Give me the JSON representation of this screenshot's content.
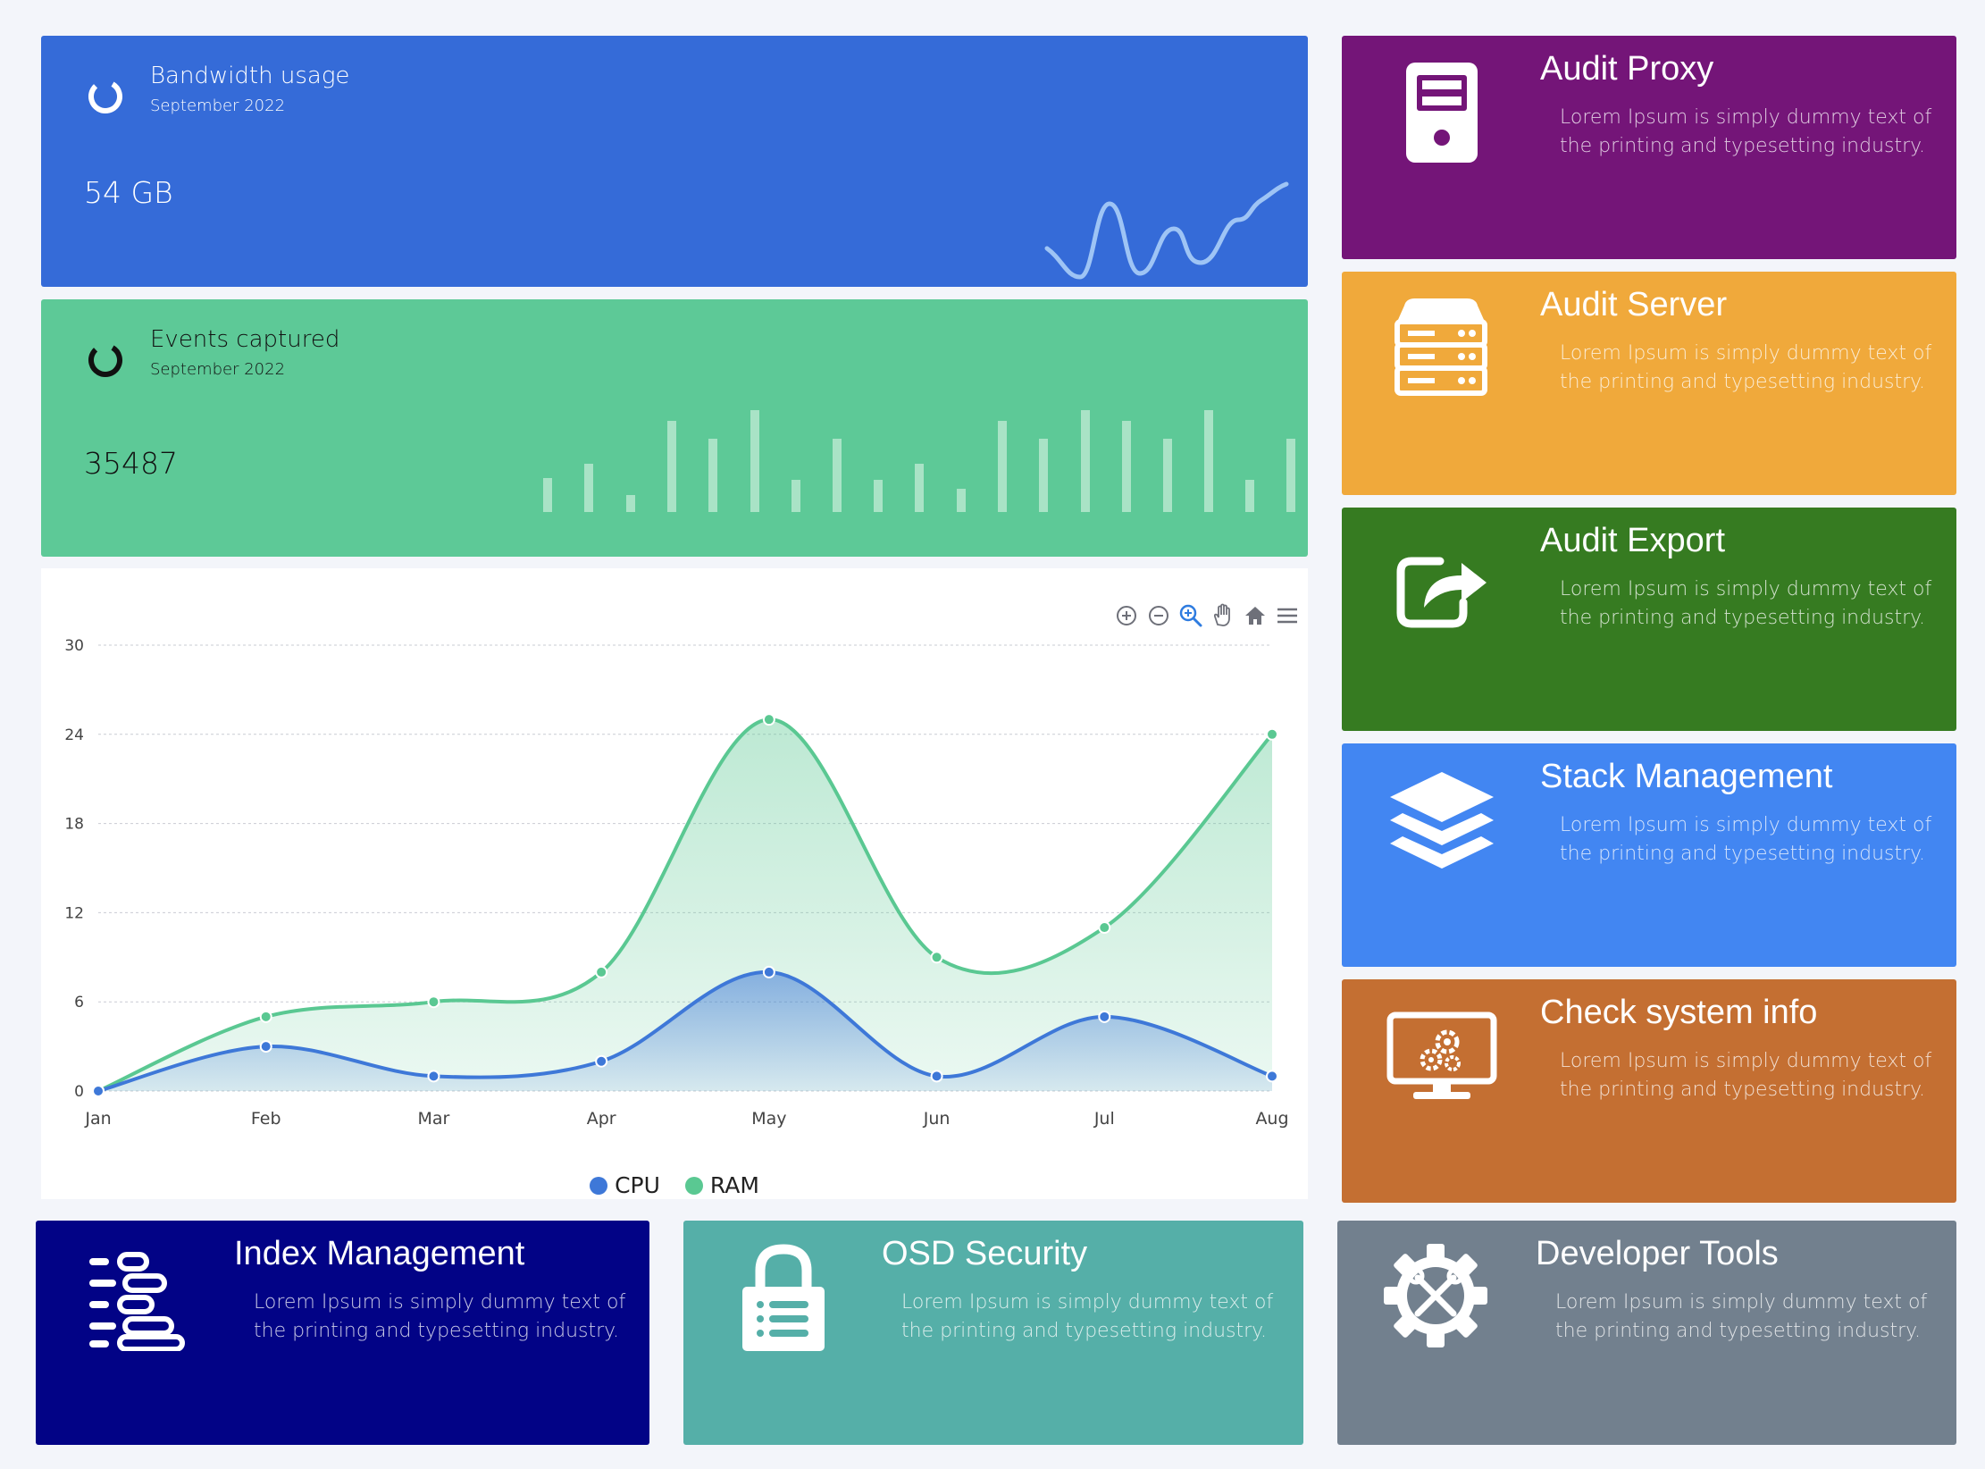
{
  "stats": {
    "bandwidth": {
      "title": "Bandwidth usage",
      "subtitle": "September 2022",
      "value": "54 GB",
      "color": "#356bd8"
    },
    "events": {
      "title": "Events captured",
      "subtitle": "September 2022",
      "value": "35487",
      "color": "#5dc997"
    }
  },
  "toolbar": {
    "icons": [
      "zoom-in-icon",
      "zoom-out-icon",
      "selection-zoom-icon",
      "pan-hand-icon",
      "reset-home-icon",
      "menu-icon"
    ]
  },
  "chart_data": {
    "type": "area",
    "categories": [
      "Jan",
      "Feb",
      "Mar",
      "Apr",
      "May",
      "Jun",
      "Jul",
      "Aug"
    ],
    "series": [
      {
        "name": "CPU",
        "values": [
          0,
          3,
          1,
          2,
          8,
          1,
          5,
          1
        ],
        "color": "#3e78d8"
      },
      {
        "name": "RAM",
        "values": [
          0,
          5,
          6,
          8,
          25,
          9,
          11,
          24
        ],
        "color": "#5ac892"
      }
    ],
    "yticks": [
      0,
      6,
      12,
      18,
      24,
      30
    ],
    "ylim": [
      0,
      30
    ],
    "grid": true,
    "legend": "bottom"
  },
  "tiles": [
    {
      "id": "audit-proxy",
      "title": "Audit Proxy",
      "desc": "Lorem Ipsum is simply dummy text of the printing and typesetting industry.",
      "color": "#741578",
      "icon": "server-tower-icon"
    },
    {
      "id": "audit-server",
      "title": "Audit Server",
      "desc": "Lorem Ipsum is simply dummy text of the printing and typesetting industry.",
      "color": "#f0a93b",
      "icon": "server-rack-icon"
    },
    {
      "id": "audit-export",
      "title": "Audit Export",
      "desc": "Lorem Ipsum is simply dummy text of the printing and typesetting industry.",
      "color": "#367b21",
      "icon": "export-share-icon"
    },
    {
      "id": "stack-management",
      "title": "Stack Management",
      "desc": "Lorem Ipsum is simply dummy text of the printing and typesetting industry.",
      "color": "#4286f2",
      "icon": "layers-stack-icon"
    },
    {
      "id": "check-system-info",
      "title": "Check system info",
      "desc": "Lorem Ipsum is simply dummy text of the printing and typesetting industry.",
      "color": "#c46f32",
      "icon": "monitor-gears-icon"
    },
    {
      "id": "index-management",
      "title": "Index Management",
      "desc": "Lorem Ipsum is simply dummy text of the printing and typesetting industry.",
      "color": "#020386",
      "icon": "index-list-icon"
    },
    {
      "id": "osd-security",
      "title": "OSD Security",
      "desc": "Lorem Ipsum is simply dummy text of the printing and typesetting industry.",
      "color": "#55afa8",
      "icon": "padlock-list-icon"
    },
    {
      "id": "developer-tools",
      "title": "Developer Tools",
      "desc": "Lorem Ipsum is simply dummy text of the printing and typesetting industry.",
      "color": "#72808e",
      "icon": "gear-tools-icon"
    }
  ]
}
